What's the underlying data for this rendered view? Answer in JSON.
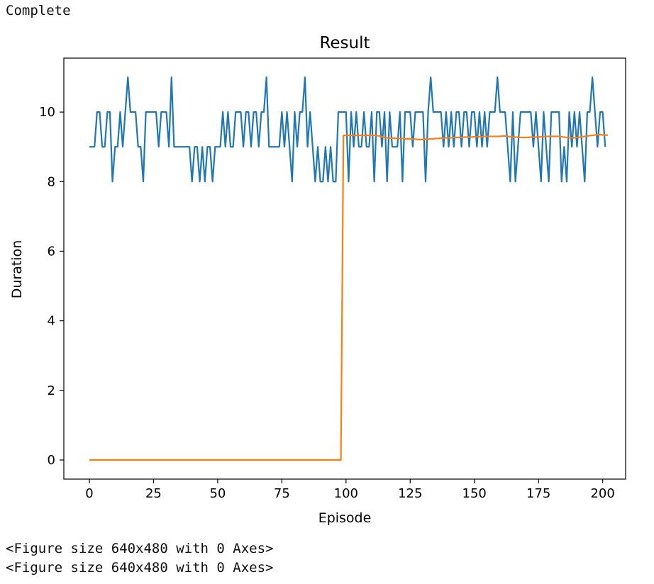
{
  "output": {
    "status": "Complete",
    "log_lines": [
      "<Figure size 640x480 with 0 Axes>",
      "<Figure size 640x480 with 0 Axes>"
    ]
  },
  "chart_data": {
    "type": "line",
    "title": "Result",
    "xlabel": "Episode",
    "ylabel": "Duration",
    "xlim": [
      -9.95,
      208.95
    ],
    "ylim": [
      -0.55,
      11.55
    ],
    "xticks": [
      0,
      25,
      50,
      75,
      100,
      125,
      150,
      175,
      200
    ],
    "xtick_labels": [
      "0",
      "25",
      "50",
      "75",
      "100",
      "125",
      "150",
      "175",
      "200"
    ],
    "yticks": [
      0,
      2,
      4,
      6,
      8,
      10
    ],
    "ytick_labels": [
      "0",
      "2",
      "4",
      "6",
      "8",
      "10"
    ],
    "grid": false,
    "legend": "none",
    "series": [
      {
        "color": "#1f77b4",
        "values": [
          9,
          9,
          9,
          10,
          10,
          9,
          9,
          10,
          10,
          8,
          9,
          9,
          10,
          9,
          10,
          11,
          10,
          10,
          10,
          9,
          9,
          8,
          10,
          10,
          10,
          10,
          10,
          9,
          10,
          10,
          10,
          9,
          11,
          9,
          9,
          9,
          9,
          9,
          9,
          9,
          8,
          9,
          9,
          8,
          9,
          8,
          9,
          9,
          8,
          9,
          9,
          9,
          10,
          9,
          10,
          9,
          9,
          10,
          10,
          10,
          9,
          10,
          10,
          9,
          10,
          10,
          9,
          10,
          10,
          11,
          9,
          9,
          9,
          9,
          9,
          10,
          9,
          10,
          9,
          8,
          10,
          9,
          10,
          10,
          11,
          9,
          10,
          9,
          8,
          9,
          8,
          8,
          9,
          8,
          9,
          8,
          8,
          10,
          10,
          10,
          10,
          8,
          10,
          9,
          10,
          9,
          9,
          10,
          9,
          9,
          10,
          8,
          10,
          10,
          9,
          10,
          8,
          10,
          9,
          9,
          9,
          10,
          8,
          10,
          10,
          10,
          9,
          10,
          10,
          10,
          10,
          8,
          10,
          11,
          10,
          10,
          10,
          10,
          9,
          10,
          9,
          10,
          9,
          10,
          10,
          9,
          10,
          10,
          9,
          10,
          10,
          9,
          10,
          9,
          10,
          9,
          10,
          10,
          10,
          11,
          10,
          10,
          10,
          9,
          8,
          10,
          8,
          9,
          10,
          10,
          10,
          10,
          10,
          9,
          10,
          9,
          8,
          10,
          9,
          8,
          10,
          10,
          10,
          10,
          8,
          9,
          8,
          10,
          9,
          10,
          9,
          10,
          9,
          8,
          10,
          10,
          11,
          10,
          9,
          10,
          10,
          9
        ]
      },
      {
        "color": "#ff7f0e",
        "values": [
          0,
          0,
          0,
          0,
          0,
          0,
          0,
          0,
          0,
          0,
          0,
          0,
          0,
          0,
          0,
          0,
          0,
          0,
          0,
          0,
          0,
          0,
          0,
          0,
          0,
          0,
          0,
          0,
          0,
          0,
          0,
          0,
          0,
          0,
          0,
          0,
          0,
          0,
          0,
          0,
          0,
          0,
          0,
          0,
          0,
          0,
          0,
          0,
          0,
          0,
          0,
          0,
          0,
          0,
          0,
          0,
          0,
          0,
          0,
          0,
          0,
          0,
          0,
          0,
          0,
          0,
          0,
          0,
          0,
          0,
          0,
          0,
          0,
          0,
          0,
          0,
          0,
          0,
          0,
          0,
          0,
          0,
          0,
          0,
          0,
          0,
          0,
          0,
          0,
          0,
          0,
          0,
          0,
          0,
          0,
          0,
          0,
          0,
          0,
          9.33,
          9.33,
          9.33,
          9.33,
          9.33,
          9.33,
          9.33,
          9.33,
          9.33,
          9.33,
          9.33,
          9.33,
          9.33,
          9.32,
          9.31,
          9.29,
          9.27,
          9.26,
          9.25,
          9.25,
          9.25,
          9.24,
          9.24,
          9.24,
          9.23,
          9.23,
          9.23,
          9.22,
          9.22,
          9.21,
          9.21,
          9.21,
          9.22,
          9.22,
          9.23,
          9.23,
          9.24,
          9.24,
          9.25,
          9.25,
          9.26,
          9.26,
          9.26,
          9.27,
          9.27,
          9.27,
          9.27,
          9.28,
          9.28,
          9.28,
          9.28,
          9.29,
          9.29,
          9.29,
          9.29,
          9.3,
          9.3,
          9.3,
          9.3,
          9.3,
          9.3,
          9.3,
          9.31,
          9.31,
          9.3,
          9.29,
          9.28,
          9.28,
          9.28,
          9.27,
          9.27,
          9.27,
          9.27,
          9.28,
          9.28,
          9.28,
          9.29,
          9.29,
          9.29,
          9.3,
          9.3,
          9.3,
          9.3,
          9.3,
          9.3,
          9.29,
          9.28,
          9.27,
          9.26,
          9.26,
          9.26,
          9.27,
          9.28,
          9.29,
          9.3,
          9.31,
          9.32,
          9.33,
          9.34,
          9.35,
          9.35,
          9.34,
          9.34,
          9.33
        ]
      }
    ]
  }
}
